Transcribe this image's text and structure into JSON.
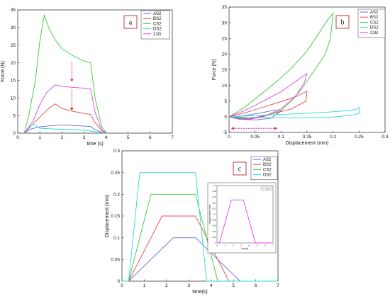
{
  "chart_data": [
    {
      "type": "line",
      "panel_label": "a",
      "xlabel": "time (s)",
      "ylabel": "Force (N)",
      "xlim": [
        0,
        7
      ],
      "ylim": [
        0,
        35
      ],
      "xticks": [
        0,
        1,
        2,
        3,
        4,
        5,
        6,
        7
      ],
      "yticks": [
        0,
        5,
        10,
        15,
        20,
        25,
        30,
        35
      ],
      "grid": false,
      "legend_position": "top-right",
      "arrow_color": "#e0208a",
      "series": [
        {
          "name": "AS2",
          "color": "#6a6ad8",
          "x": [
            0.3,
            0.6,
            1.0,
            1.5,
            2.0,
            2.5,
            3.0,
            3.3,
            3.5,
            3.8,
            4.0
          ],
          "y": [
            0,
            1.2,
            1.8,
            2.1,
            2.3,
            2.2,
            2.0,
            1.9,
            1.0,
            0.3,
            0
          ]
        },
        {
          "name": "BS2",
          "color": "#e84848",
          "x": [
            0.3,
            0.6,
            1.0,
            1.4,
            1.7,
            2.0,
            2.5,
            3.0,
            3.3,
            3.5,
            3.8,
            4.0
          ],
          "y": [
            0,
            2.0,
            4.5,
            7.0,
            8.3,
            7.0,
            6.2,
            5.6,
            5.3,
            3.0,
            0.8,
            0
          ]
        },
        {
          "name": "CS2",
          "color": "#3ac83a",
          "x": [
            0.3,
            0.5,
            0.8,
            1.0,
            1.2,
            1.4,
            1.7,
            2.0,
            2.5,
            3.0,
            3.3,
            3.5,
            3.8,
            4.0
          ],
          "y": [
            0,
            5.0,
            15.0,
            26.0,
            33.5,
            30.0,
            26.5,
            24.0,
            22.0,
            20.5,
            20.0,
            10.0,
            2.0,
            0
          ]
        },
        {
          "name": "DS2",
          "color": "#2ad8d8",
          "x": [
            0.3,
            0.5,
            0.7,
            0.8,
            1.0,
            1.5,
            2.0,
            2.5,
            3.0,
            3.5,
            4.0
          ],
          "y": [
            0,
            1.5,
            2.6,
            2.2,
            1.4,
            1.2,
            1.1,
            1.0,
            0.9,
            0.4,
            0
          ]
        },
        {
          "name": "21G",
          "color": "#e040e0",
          "x": [
            0.3,
            0.7,
            1.0,
            1.3,
            1.7,
            2.0,
            2.5,
            3.0,
            3.3,
            3.5,
            3.8,
            4.0
          ],
          "y": [
            0,
            3.5,
            8.0,
            11.5,
            13.7,
            13.3,
            13.0,
            12.8,
            12.6,
            6.0,
            1.0,
            0
          ]
        }
      ]
    },
    {
      "type": "line",
      "panel_label": "b",
      "xlabel": "Displacement (mm)",
      "ylabel": "Force (N)",
      "xlim": [
        0,
        0.3
      ],
      "ylim": [
        -5,
        35
      ],
      "xticks": [
        0,
        0.05,
        0.1,
        0.15,
        0.2,
        0.25,
        0.3
      ],
      "yticks": [
        -5,
        0,
        5,
        10,
        15,
        20,
        25,
        30,
        35
      ],
      "grid": false,
      "legend_position": "top-right",
      "arrow_color": "#e0208a",
      "series": [
        {
          "name": "AS2",
          "color": "#6a6ad8",
          "x": [
            0,
            0.02,
            0.05,
            0.08,
            0.1,
            0.09,
            0.06,
            0.03,
            0.01,
            0
          ],
          "y": [
            0,
            -0.8,
            -1.0,
            -0.5,
            1.8,
            2.2,
            1.2,
            0.4,
            -0.3,
            0
          ]
        },
        {
          "name": "BS2",
          "color": "#e84848",
          "x": [
            0,
            0.03,
            0.06,
            0.1,
            0.13,
            0.15,
            0.148,
            0.12,
            0.08,
            0.04,
            0
          ],
          "y": [
            0,
            1.2,
            2.8,
            4.8,
            6.5,
            8.2,
            5.0,
            2.5,
            0.8,
            -0.6,
            0
          ]
        },
        {
          "name": "CS2",
          "color": "#3ac83a",
          "x": [
            0,
            0.03,
            0.06,
            0.09,
            0.12,
            0.15,
            0.17,
            0.19,
            0.2,
            0.195,
            0.185,
            0.165,
            0.14,
            0.12,
            0.1,
            0.07,
            0.04,
            0.02,
            0
          ],
          "y": [
            0,
            3.0,
            7.0,
            11.0,
            15.5,
            21.0,
            26.0,
            31.0,
            33.0,
            25.0,
            20.0,
            15.0,
            9.0,
            5.0,
            2.0,
            0.2,
            -0.8,
            -0.4,
            0
          ]
        },
        {
          "name": "DS2",
          "color": "#2ad8d8",
          "x": [
            0,
            0.04,
            0.08,
            0.12,
            0.16,
            0.2,
            0.23,
            0.245,
            0.25,
            0.252,
            0.24,
            0.2,
            0.15,
            0.1,
            0.05,
            0
          ],
          "y": [
            0,
            0.3,
            0.6,
            0.9,
            1.2,
            1.6,
            2.0,
            2.4,
            3.0,
            1.2,
            0.6,
            -0.1,
            -0.4,
            -0.4,
            -0.2,
            0
          ]
        },
        {
          "name": "21G",
          "color": "#e040e0",
          "x": [
            0,
            0.03,
            0.06,
            0.1,
            0.13,
            0.15,
            0.145,
            0.13,
            0.1,
            0.07,
            0.04,
            0.02,
            0
          ],
          "y": [
            0,
            2.0,
            4.5,
            8.0,
            11.5,
            13.8,
            11.0,
            7.0,
            2.5,
            0.3,
            -0.8,
            -0.6,
            0
          ]
        }
      ]
    },
    {
      "type": "line",
      "panel_label": "c",
      "xlabel": "time(s)",
      "ylabel": "Displacement (mm)",
      "xlim": [
        0,
        7
      ],
      "ylim": [
        0,
        0.3
      ],
      "xticks": [
        0,
        1,
        2,
        3,
        4,
        5,
        6,
        7
      ],
      "yticks": [
        0,
        0.05,
        0.1,
        0.15,
        0.2,
        0.25,
        0.3
      ],
      "grid": false,
      "legend_position": "top-right",
      "series": [
        {
          "name": "AS2",
          "color": "#6a6ad8",
          "x": [
            0,
            0.3,
            2.3,
            3.3,
            5.3,
            7.0
          ],
          "y": [
            0,
            0,
            0.1,
            0.1,
            0,
            0
          ]
        },
        {
          "name": "BS2",
          "color": "#e84848",
          "x": [
            0,
            0.3,
            1.8,
            3.3,
            4.8,
            7.0
          ],
          "y": [
            0,
            0,
            0.15,
            0.15,
            0,
            0
          ]
        },
        {
          "name": "CS2",
          "color": "#3ac83a",
          "x": [
            0,
            0.3,
            1.3,
            3.3,
            4.3,
            7.0
          ],
          "y": [
            0,
            0,
            0.2,
            0.2,
            0,
            0
          ]
        },
        {
          "name": "DS2",
          "color": "#2ad8d8",
          "x": [
            0,
            0.3,
            0.8,
            3.3,
            3.8,
            7.0
          ],
          "y": [
            0,
            0,
            0.25,
            0.25,
            0,
            0
          ]
        }
      ],
      "inset": {
        "xlabel": "time(s)",
        "ylabel": "Displacement (mm)",
        "xlim": [
          0,
          7
        ],
        "ylim": [
          0,
          0.2
        ],
        "xticks": [
          0,
          1,
          2,
          3,
          4,
          5,
          6,
          7
        ],
        "yticks": [
          0,
          0.02,
          0.04,
          0.06,
          0.08,
          0.1,
          0.12,
          0.14,
          0.16,
          0.18,
          0.2
        ],
        "series": [
          {
            "name": "21G",
            "color": "#e040e0",
            "x": [
              0,
              0.3,
              1.8,
              3.3,
              4.8,
              7.0
            ],
            "y": [
              0,
              0,
              0.15,
              0.15,
              0,
              0
            ]
          }
        ]
      }
    }
  ]
}
